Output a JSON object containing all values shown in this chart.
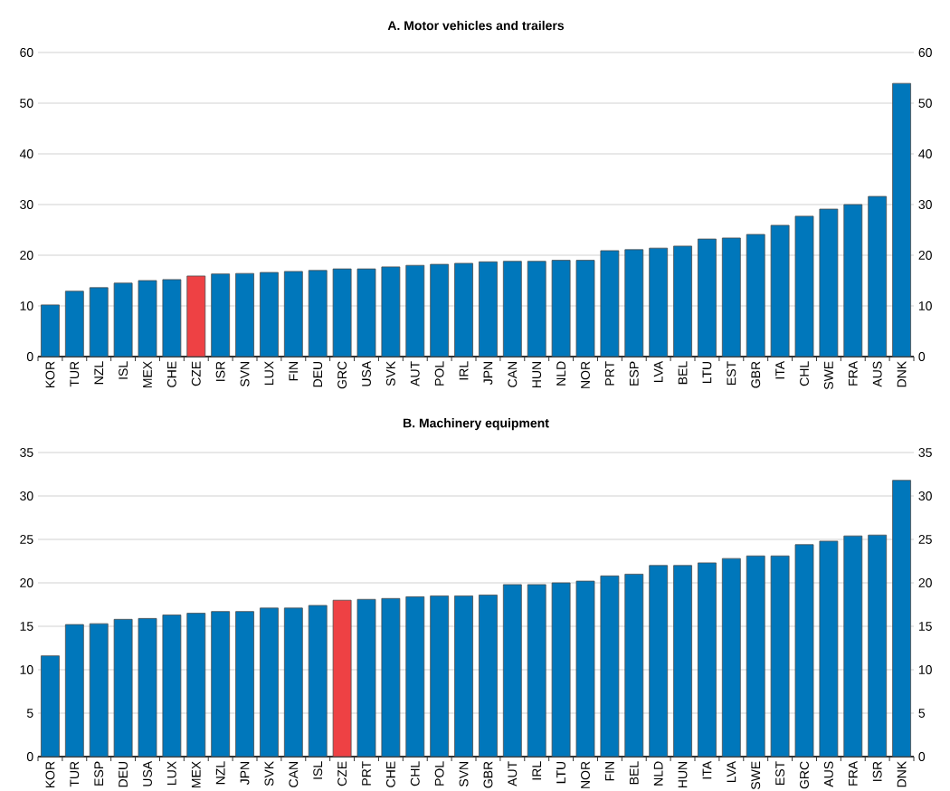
{
  "chart_data": [
    {
      "type": "bar",
      "title": "A. Motor vehicles and trailers",
      "categories": [
        "KOR",
        "TUR",
        "NZL",
        "ISL",
        "MEX",
        "CHE",
        "CZE",
        "ISR",
        "SVN",
        "LUX",
        "FIN",
        "DEU",
        "GRC",
        "USA",
        "SVK",
        "AUT",
        "POL",
        "IRL",
        "JPN",
        "CAN",
        "HUN",
        "NLD",
        "NOR",
        "PRT",
        "ESP",
        "LVA",
        "BEL",
        "LTU",
        "EST",
        "GBR",
        "ITA",
        "CHL",
        "SWE",
        "FRA",
        "AUS",
        "DNK"
      ],
      "values": [
        10.2,
        12.9,
        13.6,
        14.5,
        15.0,
        15.2,
        15.9,
        16.3,
        16.4,
        16.6,
        16.8,
        17.0,
        17.3,
        17.3,
        17.7,
        18.0,
        18.2,
        18.4,
        18.7,
        18.8,
        18.8,
        19.0,
        19.0,
        20.9,
        21.1,
        21.4,
        21.8,
        23.2,
        23.4,
        24.1,
        25.9,
        27.7,
        29.1,
        30.0,
        31.6,
        53.9
      ],
      "colors": [
        "#0077bb",
        "#0077bb",
        "#0077bb",
        "#0077bb",
        "#0077bb",
        "#0077bb",
        "#ee4144",
        "#0077bb",
        "#0077bb",
        "#0077bb",
        "#0077bb",
        "#0077bb",
        "#0077bb",
        "#0077bb",
        "#0077bb",
        "#0077bb",
        "#0077bb",
        "#0077bb",
        "#0077bb",
        "#0077bb",
        "#0077bb",
        "#0077bb",
        "#0077bb",
        "#0077bb",
        "#0077bb",
        "#0077bb",
        "#0077bb",
        "#0077bb",
        "#0077bb",
        "#0077bb",
        "#0077bb",
        "#0077bb",
        "#0077bb",
        "#0077bb",
        "#0077bb",
        "#0077bb"
      ],
      "ylim": [
        0,
        60
      ],
      "yticks": [
        0,
        10,
        20,
        30,
        40,
        50,
        60
      ],
      "y2lim": [
        0,
        60
      ],
      "y2ticks": [
        0,
        10,
        20,
        30,
        40,
        50,
        60
      ],
      "grid": "y"
    },
    {
      "type": "bar",
      "title": "B. Machinery equipment",
      "categories": [
        "KOR",
        "TUR",
        "ESP",
        "DEU",
        "USA",
        "LUX",
        "MEX",
        "NZL",
        "JPN",
        "SVK",
        "CAN",
        "ISL",
        "CZE",
        "PRT",
        "CHE",
        "CHL",
        "POL",
        "SVN",
        "GBR",
        "AUT",
        "IRL",
        "LTU",
        "NOR",
        "FIN",
        "BEL",
        "NLD",
        "HUN",
        "ITA",
        "LVA",
        "SWE",
        "EST",
        "GRC",
        "AUS",
        "FRA",
        "ISR",
        "DNK"
      ],
      "values": [
        11.6,
        15.2,
        15.3,
        15.8,
        15.9,
        16.3,
        16.5,
        16.7,
        16.7,
        17.1,
        17.1,
        17.4,
        18.0,
        18.1,
        18.2,
        18.4,
        18.5,
        18.5,
        18.6,
        19.8,
        19.8,
        20.0,
        20.2,
        20.8,
        21.0,
        22.0,
        22.0,
        22.3,
        22.8,
        23.1,
        23.1,
        24.4,
        24.8,
        25.4,
        25.5,
        31.8
      ],
      "colors": [
        "#0077bb",
        "#0077bb",
        "#0077bb",
        "#0077bb",
        "#0077bb",
        "#0077bb",
        "#0077bb",
        "#0077bb",
        "#0077bb",
        "#0077bb",
        "#0077bb",
        "#0077bb",
        "#ee4144",
        "#0077bb",
        "#0077bb",
        "#0077bb",
        "#0077bb",
        "#0077bb",
        "#0077bb",
        "#0077bb",
        "#0077bb",
        "#0077bb",
        "#0077bb",
        "#0077bb",
        "#0077bb",
        "#0077bb",
        "#0077bb",
        "#0077bb",
        "#0077bb",
        "#0077bb",
        "#0077bb",
        "#0077bb",
        "#0077bb",
        "#0077bb",
        "#0077bb",
        "#0077bb"
      ],
      "ylim": [
        0,
        35
      ],
      "yticks": [
        0,
        5,
        10,
        15,
        20,
        25,
        30,
        35
      ],
      "y2lim": [
        0,
        35
      ],
      "y2ticks": [
        0,
        5,
        10,
        15,
        20,
        25,
        30,
        35
      ],
      "grid": "y"
    }
  ]
}
